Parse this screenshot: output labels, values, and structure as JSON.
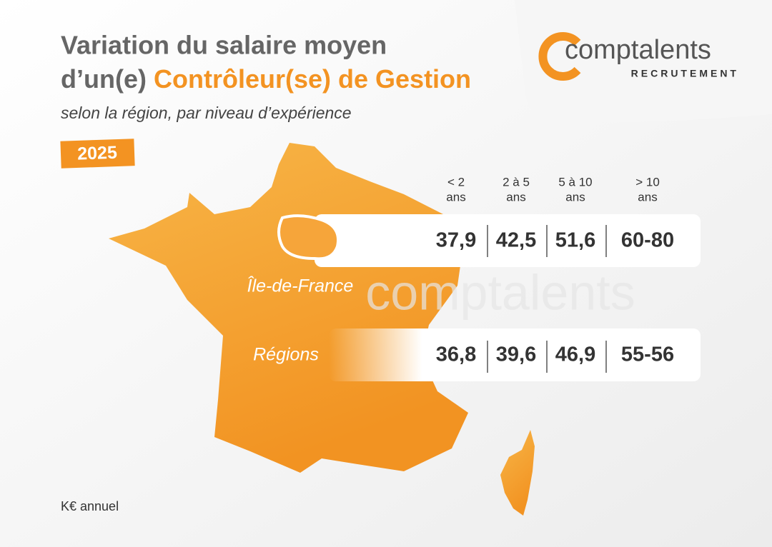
{
  "header": {
    "title_line1": "Variation du salaire moyen",
    "title_prefix": "d’un(e)",
    "title_highlight": "Contrôleur(se) de Gestion",
    "subtitle": "selon la région, par niveau d’expérience",
    "year": "2025"
  },
  "logo": {
    "name": "comptalents",
    "tagline": "RECRUTEMENT"
  },
  "watermark": "comptalents",
  "table": {
    "columns": [
      [
        "< 2",
        "ans"
      ],
      [
        "2 à 5",
        "ans"
      ],
      [
        "5 à 10",
        "ans"
      ],
      [
        "> 10",
        "ans"
      ]
    ],
    "rows": [
      {
        "label": "Île-de-France",
        "values": [
          "37,9",
          "42,5",
          "51,6",
          "60-80"
        ]
      },
      {
        "label": "Régions",
        "values": [
          "36,8",
          "39,6",
          "46,9",
          "55-56"
        ]
      }
    ]
  },
  "footnote": "K€ annuel"
}
